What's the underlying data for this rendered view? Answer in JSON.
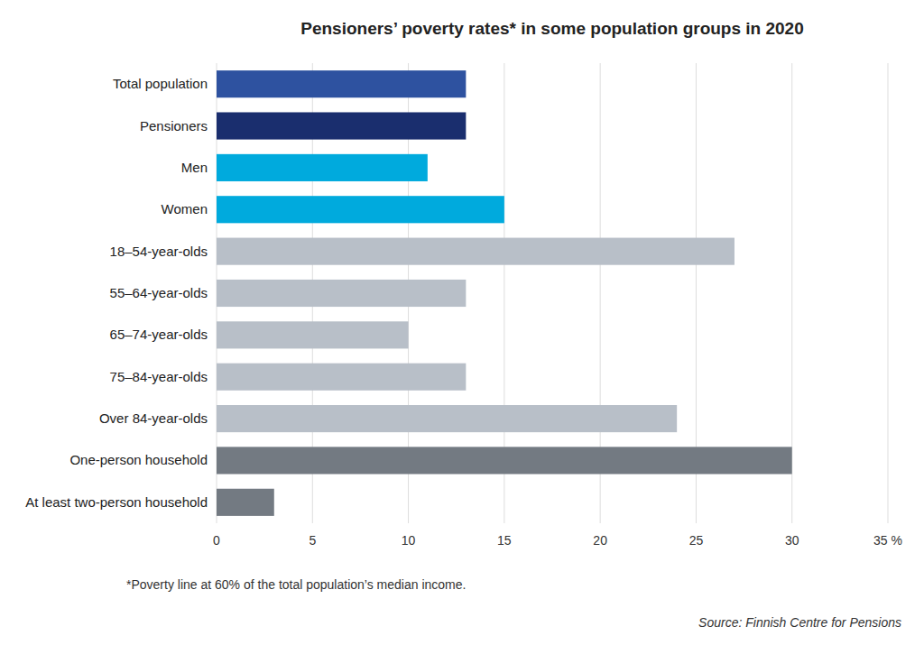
{
  "chart_data": {
    "type": "bar",
    "orientation": "horizontal",
    "title": "Pensioners’ poverty rates* in some population groups in 2020",
    "categories": [
      "Total population",
      "Pensioners",
      "Men",
      "Women",
      "18–54-year-olds",
      "55–64-year-olds",
      "65–74-year-olds",
      "75–84-year-olds",
      "Over 84-year-olds",
      "One-person household",
      "At least two-person household"
    ],
    "values": [
      13,
      13,
      11,
      15,
      27,
      13,
      10,
      13,
      24,
      30,
      3
    ],
    "colors": [
      "#2e52a0",
      "#1a2e6e",
      "#00aadd",
      "#00aadd",
      "#b8bfc8",
      "#b8bfc8",
      "#b8bfc8",
      "#b8bfc8",
      "#b8bfc8",
      "#737a82",
      "#737a82"
    ],
    "xlim": [
      0,
      35
    ],
    "xticks": [
      0,
      5,
      10,
      15,
      20,
      25,
      30,
      {
        "value": 35,
        "label": "35 %"
      }
    ],
    "grid": true,
    "annotations": [
      "*Poverty line at 60% of the total population’s median income.",
      "Source: Finnish Centre for Pensions"
    ]
  }
}
